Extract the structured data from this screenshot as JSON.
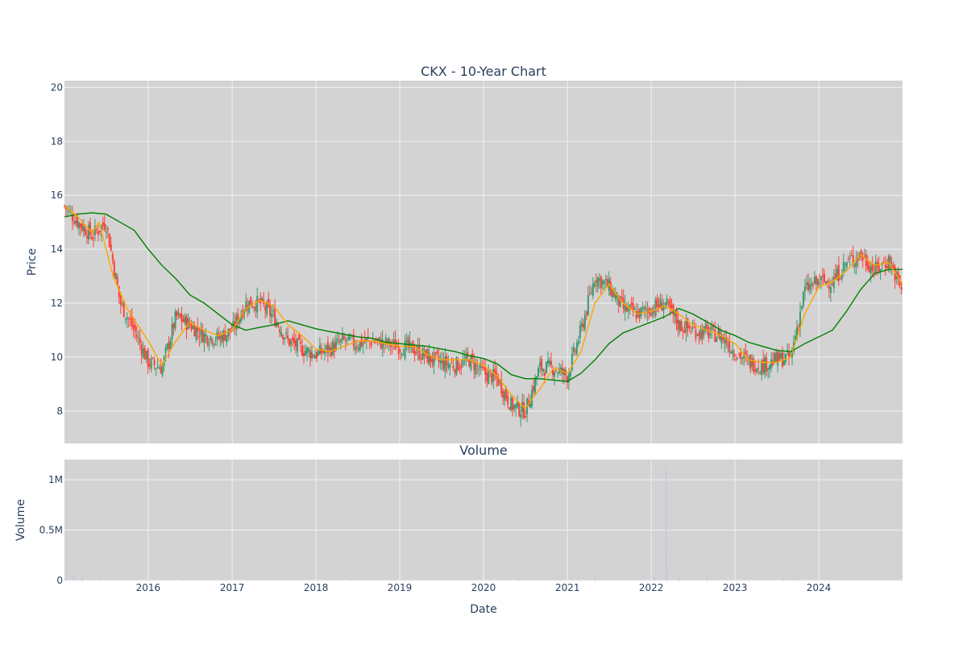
{
  "colors": {
    "plot_bg": "#d3d3d3",
    "grid": "#eef0f4",
    "text": "#2a3f5f",
    "increasing": "#3d9970",
    "decreasing": "#ff4136",
    "ma_short": "#ffa500",
    "ma_long": "#008000",
    "volume_bar": "#c8c8e0"
  },
  "chart_data": [
    {
      "type": "line",
      "subtype": "candlestick",
      "title": "CKX - 10-Year Chart",
      "xlabel": "",
      "ylabel": "Price",
      "xlim": [
        "2015-01-01",
        "2024-12-31"
      ],
      "ylim": [
        6.8,
        20.25
      ],
      "y_ticks": [
        8,
        10,
        12,
        14,
        16,
        18,
        20
      ],
      "grid": true,
      "legend": "none",
      "series": [
        {
          "kind": "price_close",
          "x": [
            "2015-01-01",
            "2015-03-01",
            "2015-05-01",
            "2015-07-01",
            "2015-09-01",
            "2015-11-01",
            "2016-01-01",
            "2016-03-01",
            "2016-05-01",
            "2016-07-01",
            "2016-09-01",
            "2016-11-01",
            "2017-01-01",
            "2017-03-01",
            "2017-05-01",
            "2017-07-01",
            "2017-09-01",
            "2017-11-01",
            "2018-01-01",
            "2018-03-01",
            "2018-05-01",
            "2018-07-01",
            "2018-09-01",
            "2018-11-01",
            "2019-01-01",
            "2019-03-01",
            "2019-05-01",
            "2019-07-01",
            "2019-09-01",
            "2019-11-01",
            "2020-01-01",
            "2020-03-01",
            "2020-05-01",
            "2020-07-01",
            "2020-09-01",
            "2020-11-01",
            "2021-01-01",
            "2021-03-01",
            "2021-05-01",
            "2021-07-01",
            "2021-09-01",
            "2021-11-01",
            "2022-01-01",
            "2022-03-01",
            "2022-05-01",
            "2022-07-01",
            "2022-09-01",
            "2022-11-01",
            "2023-01-01",
            "2023-03-01",
            "2023-05-01",
            "2023-07-01",
            "2023-09-01",
            "2023-11-01",
            "2024-01-01",
            "2024-03-01",
            "2024-05-01",
            "2024-07-01",
            "2024-09-01",
            "2024-11-01",
            "2024-12-31"
          ],
          "values": [
            15.6,
            15.0,
            14.5,
            15.0,
            12.0,
            11.0,
            9.8,
            9.6,
            11.5,
            11.2,
            10.8,
            10.7,
            11.0,
            12.0,
            12.0,
            11.5,
            10.6,
            10.3,
            10.1,
            10.3,
            10.6,
            10.5,
            10.6,
            10.5,
            10.4,
            10.3,
            10.0,
            9.8,
            9.7,
            9.9,
            9.4,
            9.2,
            8.2,
            8.0,
            9.6,
            9.6,
            9.3,
            11.0,
            13.0,
            12.6,
            11.8,
            11.6,
            11.8,
            12.0,
            11.2,
            11.0,
            10.9,
            10.8,
            10.2,
            9.8,
            9.7,
            9.9,
            10.0,
            12.5,
            12.8,
            12.8,
            13.5,
            13.8,
            13.2,
            13.6,
            12.4
          ]
        },
        {
          "kind": "volume_scale_note",
          "x": [],
          "values": []
        },
        {
          "kind": "ma_short",
          "x": [
            "2015-01-01",
            "2015-03-01",
            "2015-05-01",
            "2015-06-01",
            "2015-08-01",
            "2015-10-01",
            "2016-01-01",
            "2016-03-01",
            "2016-05-01",
            "2016-07-01",
            "2016-09-01",
            "2016-11-01",
            "2017-01-01",
            "2017-03-01",
            "2017-05-01",
            "2017-07-01",
            "2017-09-01",
            "2017-11-01",
            "2018-01-01",
            "2018-03-01",
            "2018-05-01",
            "2018-07-01",
            "2018-09-01",
            "2018-11-01",
            "2019-01-01",
            "2019-03-01",
            "2019-05-01",
            "2019-07-01",
            "2019-09-01",
            "2019-11-01",
            "2020-01-01",
            "2020-03-01",
            "2020-05-01",
            "2020-07-01",
            "2020-09-01",
            "2020-11-01",
            "2021-01-01",
            "2021-03-01",
            "2021-05-01",
            "2021-07-01",
            "2021-09-01",
            "2021-11-01",
            "2022-01-01",
            "2022-03-01",
            "2022-05-01",
            "2022-07-01",
            "2022-09-01",
            "2022-11-01",
            "2023-01-01",
            "2023-03-01",
            "2023-05-01",
            "2023-07-01",
            "2023-09-01",
            "2023-11-01",
            "2024-01-01",
            "2024-03-01",
            "2024-05-01",
            "2024-07-01",
            "2024-09-01",
            "2024-11-01",
            "2024-12-31"
          ],
          "values": [
            15.6,
            15.2,
            14.6,
            15.0,
            13.0,
            11.8,
            10.6,
            9.7,
            10.6,
            11.3,
            11.0,
            10.8,
            11.0,
            11.8,
            12.1,
            11.9,
            11.2,
            10.8,
            10.3,
            10.2,
            10.4,
            10.6,
            10.6,
            10.5,
            10.4,
            10.4,
            10.1,
            9.9,
            9.9,
            9.9,
            9.7,
            9.3,
            8.6,
            8.1,
            8.8,
            9.6,
            9.4,
            10.2,
            12.0,
            12.7,
            12.0,
            11.6,
            11.7,
            11.9,
            11.6,
            11.2,
            11.0,
            10.8,
            10.5,
            9.9,
            9.8,
            9.8,
            10.0,
            11.6,
            12.6,
            12.8,
            13.2,
            13.8,
            13.4,
            13.5,
            12.7
          ]
        },
        {
          "kind": "ma_long",
          "x": [
            "2015-01-01",
            "2015-03-01",
            "2015-05-01",
            "2015-07-01",
            "2015-09-01",
            "2015-11-01",
            "2016-01-01",
            "2016-03-01",
            "2016-05-01",
            "2016-07-01",
            "2016-09-01",
            "2016-11-01",
            "2017-01-01",
            "2017-03-01",
            "2017-05-01",
            "2017-07-01",
            "2017-09-01",
            "2017-11-01",
            "2018-01-01",
            "2018-03-01",
            "2018-05-01",
            "2018-07-01",
            "2018-09-01",
            "2018-11-01",
            "2019-01-01",
            "2019-03-01",
            "2019-05-01",
            "2019-07-01",
            "2019-09-01",
            "2019-11-01",
            "2020-01-01",
            "2020-03-01",
            "2020-05-01",
            "2020-07-01",
            "2020-09-01",
            "2020-11-01",
            "2021-01-01",
            "2021-03-01",
            "2021-05-01",
            "2021-07-01",
            "2021-09-01",
            "2021-11-01",
            "2022-01-01",
            "2022-03-01",
            "2022-05-01",
            "2022-07-01",
            "2022-09-01",
            "2022-11-01",
            "2023-01-01",
            "2023-03-01",
            "2023-05-01",
            "2023-07-01",
            "2023-09-01",
            "2023-11-01",
            "2024-01-01",
            "2024-03-01",
            "2024-05-01",
            "2024-07-01",
            "2024-09-01",
            "2024-11-01",
            "2024-12-31"
          ],
          "values": [
            15.2,
            15.3,
            15.35,
            15.3,
            15.0,
            14.7,
            14.0,
            13.4,
            12.9,
            12.3,
            12.0,
            11.6,
            11.2,
            11.0,
            11.1,
            11.2,
            11.35,
            11.2,
            11.05,
            10.95,
            10.85,
            10.75,
            10.7,
            10.55,
            10.5,
            10.45,
            10.4,
            10.3,
            10.2,
            10.05,
            9.95,
            9.75,
            9.35,
            9.2,
            9.2,
            9.15,
            9.1,
            9.4,
            9.9,
            10.5,
            10.9,
            11.1,
            11.3,
            11.5,
            11.8,
            11.6,
            11.3,
            11.0,
            10.8,
            10.55,
            10.4,
            10.25,
            10.2,
            10.5,
            10.75,
            11.0,
            11.7,
            12.5,
            13.1,
            13.25,
            13.25
          ]
        }
      ]
    },
    {
      "type": "bar",
      "title": "Volume",
      "xlabel": "Date",
      "ylabel": "Volume",
      "xlim": [
        "2015-01-01",
        "2024-12-31"
      ],
      "ylim": [
        0,
        1200000
      ],
      "y_ticks": [
        0,
        500000,
        1000000
      ],
      "y_tick_labels": [
        "0",
        "0.5M",
        "1M"
      ],
      "x_tick_labels": [
        "2016",
        "2017",
        "2018",
        "2019",
        "2020",
        "2021",
        "2022",
        "2023",
        "2024"
      ],
      "grid": true,
      "legend": "none",
      "x": [
        "2015-01-05",
        "2015-02-10",
        "2015-03-20",
        "2015-06-01",
        "2016-06-01",
        "2017-06-01",
        "2018-06-01",
        "2019-06-01",
        "2020-06-01",
        "2020-12-01",
        "2021-05-01",
        "2022-01-15",
        "2022-03-07",
        "2022-03-08",
        "2022-03-10",
        "2022-05-01",
        "2022-09-01",
        "2023-08-01",
        "2023-10-01",
        "2024-06-01",
        "2024-12-01"
      ],
      "values": [
        20000,
        60000,
        30000,
        15000,
        10000,
        12000,
        9000,
        9000,
        18000,
        14000,
        40000,
        30000,
        1120000,
        280000,
        90000,
        35000,
        40000,
        25000,
        20000,
        12000,
        10000
      ]
    }
  ]
}
